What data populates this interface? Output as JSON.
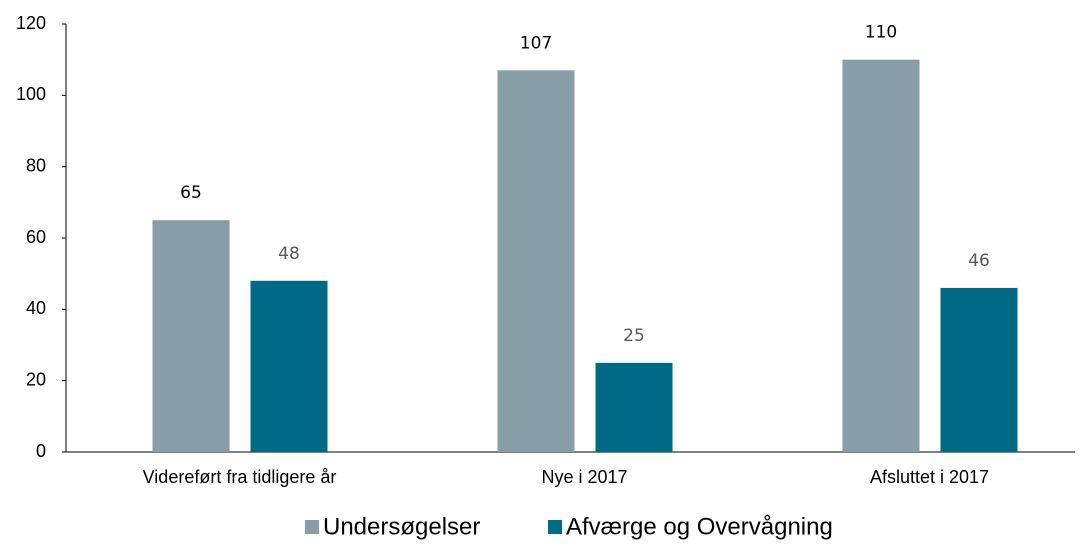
{
  "chart_data": {
    "type": "bar",
    "categories": [
      "Videreført fra tidligere år",
      "Nye i 2017",
      "Afsluttet i 2017"
    ],
    "series": [
      {
        "name": "Undersøgelser",
        "color": "#879ea8",
        "values": [
          65,
          107,
          110
        ]
      },
      {
        "name": "Afværge og Overvågning",
        "color": "#006a84",
        "values": [
          48,
          25,
          46
        ]
      }
    ],
    "ylim": [
      0,
      120
    ],
    "yticks": [
      0,
      20,
      40,
      60,
      80,
      100,
      120
    ],
    "grid": false,
    "legend": "bottom"
  }
}
